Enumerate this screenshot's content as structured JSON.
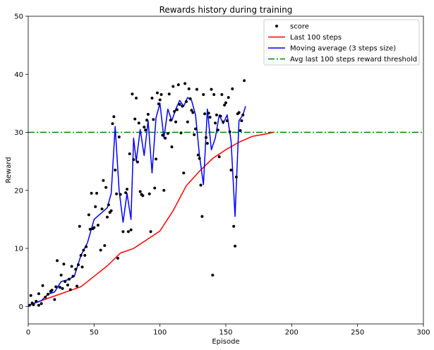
{
  "chart_data": {
    "type": "line",
    "title": "Rewards history during training",
    "xlabel": "Episode",
    "ylabel": "Reward",
    "xlim": [
      0,
      300
    ],
    "ylim": [
      -3,
      50
    ],
    "xticks": [
      0,
      50,
      100,
      150,
      200,
      250,
      300
    ],
    "yticks": [
      0,
      10,
      20,
      30,
      40,
      50
    ],
    "legend": {
      "placement": "top-right"
    },
    "colors": {
      "score": "#000000",
      "last100": "#ff0000",
      "moving": "#0000ff",
      "threshold": "#008000"
    },
    "series": [
      {
        "name": "score",
        "style": "points",
        "points": [
          [
            1,
            0.2
          ],
          [
            2,
            1.9
          ],
          [
            3,
            0.6
          ],
          [
            4,
            0.3
          ],
          [
            6,
            0.9
          ],
          [
            8,
            0.2
          ],
          [
            8,
            2.2
          ],
          [
            10,
            0.5
          ],
          [
            11,
            3.6
          ],
          [
            13,
            1.6
          ],
          [
            15,
            2.1
          ],
          [
            17,
            2.6
          ],
          [
            18,
            2.8
          ],
          [
            20,
            1.2
          ],
          [
            21,
            3.4
          ],
          [
            22,
            7.9
          ],
          [
            24,
            3.3
          ],
          [
            25,
            5.4
          ],
          [
            26,
            3.1
          ],
          [
            27,
            7.3
          ],
          [
            28,
            4.3
          ],
          [
            30,
            3.7
          ],
          [
            31,
            4.7
          ],
          [
            32,
            2.9
          ],
          [
            33,
            6.9
          ],
          [
            34,
            5.2
          ],
          [
            36,
            6.4
          ],
          [
            37,
            3.5
          ],
          [
            38,
            7.2
          ],
          [
            39,
            13.8
          ],
          [
            40,
            8.8
          ],
          [
            41,
            6.8
          ],
          [
            42,
            9.7
          ],
          [
            43,
            8.8
          ],
          [
            44,
            10.3
          ],
          [
            46,
            15.8
          ],
          [
            47,
            13.3
          ],
          [
            48,
            19.5
          ],
          [
            49,
            13.4
          ],
          [
            50,
            13.6
          ],
          [
            51,
            17.2
          ],
          [
            52,
            19.5
          ],
          [
            53,
            14.0
          ],
          [
            55,
            9.7
          ],
          [
            56,
            16.8
          ],
          [
            57,
            21.7
          ],
          [
            58,
            10.5
          ],
          [
            59,
            20.5
          ],
          [
            60,
            15.4
          ],
          [
            61,
            17.5
          ],
          [
            62,
            16.2
          ],
          [
            63,
            16.5
          ],
          [
            64,
            31.5
          ],
          [
            65,
            32.7
          ],
          [
            66,
            23.5
          ],
          [
            67,
            19.4
          ],
          [
            68,
            8.3
          ],
          [
            69,
            29.2
          ],
          [
            70,
            19.3
          ],
          [
            72,
            12.9
          ],
          [
            74,
            19.6
          ],
          [
            75,
            20.2
          ],
          [
            76,
            12.9
          ],
          [
            77,
            26.3
          ],
          [
            78,
            13.2
          ],
          [
            79,
            36.6
          ],
          [
            80,
            25.3
          ],
          [
            81,
            32.3
          ],
          [
            82,
            35.9
          ],
          [
            83,
            24.9
          ],
          [
            84,
            31.6
          ],
          [
            85,
            19.8
          ],
          [
            86,
            19.3
          ],
          [
            87,
            19.1
          ],
          [
            88,
            30.9
          ],
          [
            89,
            30.4
          ],
          [
            90,
            32.1
          ],
          [
            91,
            33.1
          ],
          [
            92,
            19.4
          ],
          [
            93,
            12.9
          ],
          [
            94,
            35.9
          ],
          [
            95,
            32.2
          ],
          [
            96,
            20.4
          ],
          [
            97,
            25.4
          ],
          [
            98,
            36.8
          ],
          [
            99,
            34.9
          ],
          [
            100,
            35.6
          ],
          [
            101,
            36.5
          ],
          [
            102,
            29.5
          ],
          [
            103,
            20.0
          ],
          [
            104,
            29.0
          ],
          [
            106,
            29.8
          ],
          [
            107,
            36.6
          ],
          [
            108,
            32.1
          ],
          [
            109,
            27.5
          ],
          [
            110,
            37.9
          ],
          [
            111,
            33.6
          ],
          [
            112,
            31.8
          ],
          [
            113,
            33.9
          ],
          [
            114,
            38.2
          ],
          [
            115,
            34.8
          ],
          [
            116,
            29.9
          ],
          [
            117,
            34.5
          ],
          [
            118,
            23.0
          ],
          [
            119,
            38.4
          ],
          [
            120,
            35.3
          ],
          [
            121,
            31.8
          ],
          [
            122,
            37.5
          ],
          [
            123,
            35.8
          ],
          [
            124,
            33.8
          ],
          [
            125,
            33.4
          ],
          [
            126,
            29.6
          ],
          [
            127,
            30.6
          ],
          [
            128,
            37.4
          ],
          [
            129,
            26.1
          ],
          [
            130,
            25.5
          ],
          [
            131,
            20.9
          ],
          [
            132,
            15.5
          ],
          [
            133,
            36.5
          ],
          [
            134,
            33.2
          ],
          [
            135,
            29.1
          ],
          [
            136,
            28.1
          ],
          [
            137,
            33.3
          ],
          [
            138,
            32.6
          ],
          [
            139,
            37.4
          ],
          [
            140,
            5.4
          ],
          [
            141,
            36.5
          ],
          [
            142,
            31.6
          ],
          [
            143,
            33.0
          ],
          [
            144,
            30.4
          ],
          [
            145,
            25.8
          ],
          [
            146,
            32.8
          ],
          [
            147,
            36.5
          ],
          [
            148,
            31.8
          ],
          [
            149,
            34.7
          ],
          [
            150,
            35.1
          ],
          [
            151,
            32.0
          ],
          [
            152,
            36.0
          ],
          [
            153,
            30.1
          ],
          [
            154,
            23.5
          ],
          [
            155,
            37.5
          ],
          [
            156,
            13.8
          ],
          [
            157,
            10.4
          ],
          [
            158,
            22.3
          ],
          [
            159,
            33.2
          ],
          [
            160,
            33.4
          ],
          [
            161,
            30.3
          ],
          [
            162,
            32.0
          ],
          [
            163,
            33.0
          ],
          [
            164,
            38.9
          ]
        ]
      },
      {
        "name": "Last 100 steps",
        "style": "line",
        "points": [
          [
            0,
            0.2
          ],
          [
            10,
            1.0
          ],
          [
            20,
            1.8
          ],
          [
            30,
            2.6
          ],
          [
            40,
            3.4
          ],
          [
            50,
            5.2
          ],
          [
            60,
            7.0
          ],
          [
            70,
            9.2
          ],
          [
            80,
            10.0
          ],
          [
            90,
            11.5
          ],
          [
            100,
            13.0
          ],
          [
            110,
            16.5
          ],
          [
            120,
            20.8
          ],
          [
            130,
            23.3
          ],
          [
            140,
            25.5
          ],
          [
            150,
            27.0
          ],
          [
            160,
            28.3
          ],
          [
            170,
            29.3
          ],
          [
            180,
            29.7
          ],
          [
            186,
            30.0
          ]
        ]
      },
      {
        "name": "Moving average (3 steps size)",
        "style": "line",
        "points": [
          [
            0,
            0.1
          ],
          [
            5,
            0.6
          ],
          [
            10,
            1.0
          ],
          [
            15,
            2.1
          ],
          [
            20,
            2.5
          ],
          [
            25,
            4.3
          ],
          [
            30,
            4.6
          ],
          [
            35,
            5.2
          ],
          [
            40,
            8.8
          ],
          [
            45,
            11.0
          ],
          [
            50,
            15.0
          ],
          [
            55,
            16.0
          ],
          [
            60,
            17.0
          ],
          [
            63,
            19.5
          ],
          [
            66,
            31.0
          ],
          [
            69,
            20.0
          ],
          [
            72,
            14.5
          ],
          [
            75,
            19.5
          ],
          [
            78,
            15.0
          ],
          [
            80,
            29.0
          ],
          [
            82,
            25.0
          ],
          [
            85,
            30.5
          ],
          [
            88,
            26.0
          ],
          [
            91,
            32.0
          ],
          [
            94,
            23.0
          ],
          [
            97,
            32.5
          ],
          [
            100,
            35.0
          ],
          [
            103,
            29.0
          ],
          [
            106,
            34.0
          ],
          [
            109,
            32.0
          ],
          [
            112,
            34.0
          ],
          [
            115,
            35.5
          ],
          [
            118,
            34.5
          ],
          [
            121,
            36.0
          ],
          [
            124,
            35.5
          ],
          [
            127,
            33.0
          ],
          [
            130,
            26.0
          ],
          [
            133,
            21.0
          ],
          [
            136,
            34.0
          ],
          [
            139,
            27.0
          ],
          [
            142,
            29.0
          ],
          [
            145,
            33.0
          ],
          [
            148,
            31.5
          ],
          [
            151,
            33.0
          ],
          [
            154,
            28.5
          ],
          [
            157,
            15.5
          ],
          [
            160,
            32.0
          ],
          [
            163,
            33.0
          ],
          [
            165,
            34.5
          ]
        ]
      },
      {
        "name": "Avg last 100 steps reward threshold",
        "style": "hline",
        "y": 30
      }
    ]
  }
}
